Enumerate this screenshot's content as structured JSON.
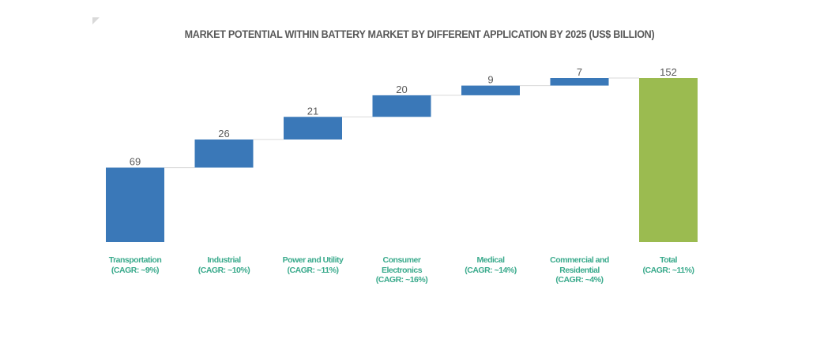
{
  "chart_data": {
    "type": "waterfall",
    "title": "MARKET POTENTIAL WITHIN BATTERY MARKET BY DIFFERENT APPLICATION BY 2025 (US$ BILLION)",
    "xlabel": "",
    "ylabel": "",
    "ylim": [
      0,
      152
    ],
    "grid": false,
    "legend": "none",
    "categories": [
      {
        "name_lines": [
          "Transportation"
        ],
        "cagr": "(CAGR:  ~9%)",
        "value": 69,
        "label": "69",
        "kind": "increment"
      },
      {
        "name_lines": [
          "Industrial"
        ],
        "cagr": "(CAGR:  ~10%)",
        "value": 26,
        "label": "26",
        "kind": "increment"
      },
      {
        "name_lines": [
          "Power and Utility"
        ],
        "cagr": "(CAGR:  ~11%)",
        "value": 21,
        "label": "21",
        "kind": "increment"
      },
      {
        "name_lines": [
          "Consumer",
          "Electronics"
        ],
        "cagr": "(CAGR:  ~16%)",
        "value": 20,
        "label": "20",
        "kind": "increment"
      },
      {
        "name_lines": [
          "Medical"
        ],
        "cagr": "(CAGR:  ~14%)",
        "value": 9,
        "label": "9",
        "kind": "increment"
      },
      {
        "name_lines": [
          "Commercial and",
          "Residential"
        ],
        "cagr": "(CAGR:  ~4%)",
        "value": 7,
        "label": "7",
        "kind": "increment"
      },
      {
        "name_lines": [
          "Total"
        ],
        "cagr": "(CAGR:  ~11%)",
        "value": 152,
        "label": "152",
        "kind": "total"
      }
    ],
    "colors": {
      "increment": "#3a78b8",
      "total": "#9bbb50",
      "connector": "#d9d9d9",
      "value_label": "#595959",
      "category_label": "#3aaa8c"
    }
  }
}
